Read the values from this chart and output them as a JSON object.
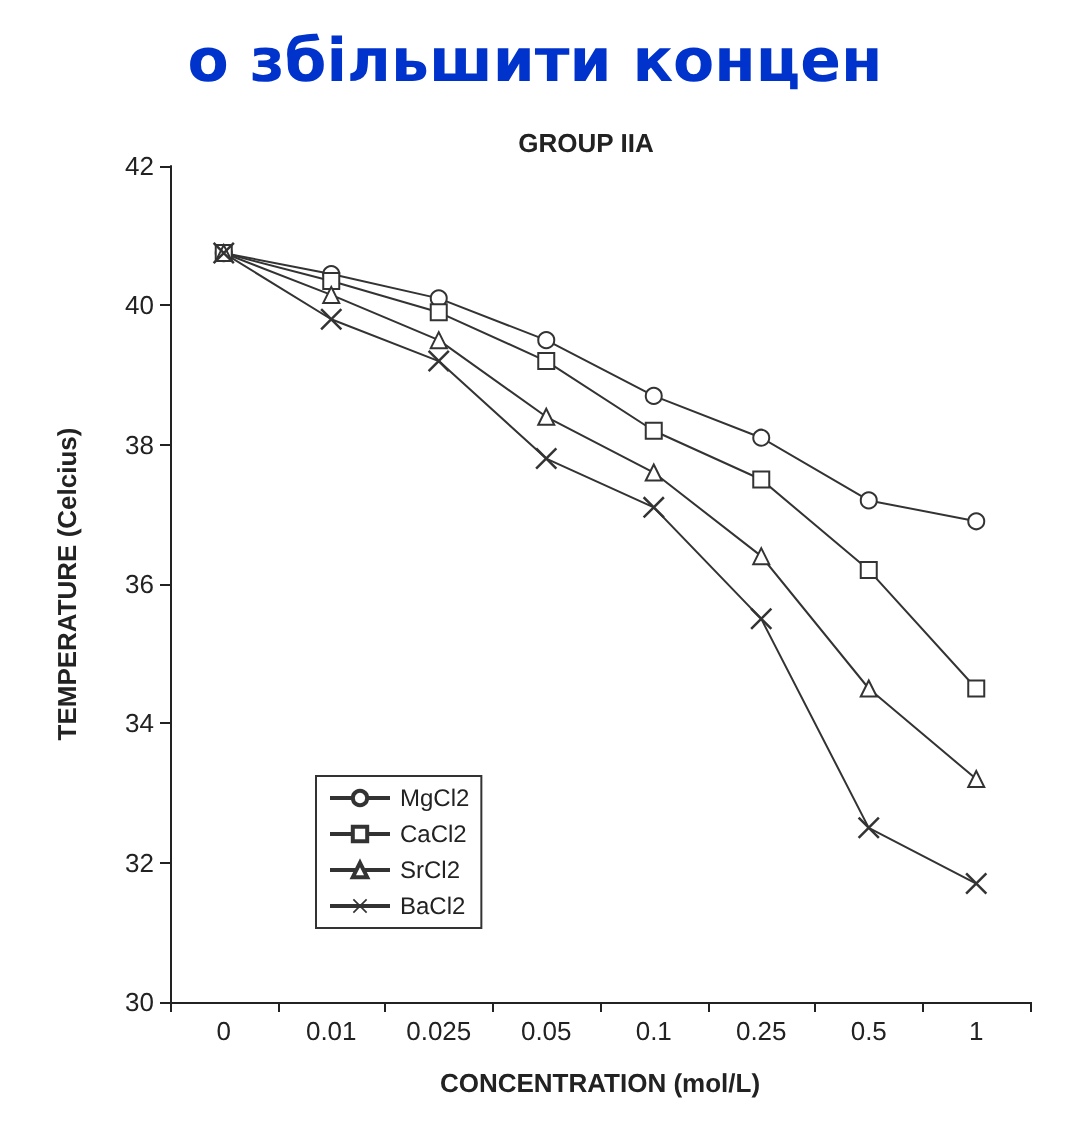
{
  "chart_data": {
    "type": "line",
    "title": "GROUP IIA",
    "xlabel": "CONCENTRATION (mol/L)",
    "ylabel": "TEMPERATURE (Celcius)",
    "annotations": [
      "о збільшити концен"
    ],
    "categories": [
      "0",
      "0.01",
      "0.025",
      "0.05",
      "0.1",
      "0.25",
      "0.5",
      "1"
    ],
    "ylim": [
      30,
      42
    ],
    "yticks": [
      30,
      32,
      34,
      36,
      38,
      40,
      42
    ],
    "grid": false,
    "legend": "bottom left",
    "series": [
      {
        "name": "MgCl2",
        "color": "#333333",
        "marker": "circle",
        "values": [
          40.75,
          40.45,
          40.1,
          39.5,
          38.7,
          38.1,
          37.2,
          36.9
        ]
      },
      {
        "name": "CaCl2",
        "color": "#333333",
        "marker": "square",
        "values": [
          40.75,
          40.35,
          39.9,
          39.2,
          38.2,
          37.5,
          36.2,
          34.5
        ]
      },
      {
        "name": "SrCl2",
        "color": "#333333",
        "marker": "triangle",
        "values": [
          40.75,
          40.15,
          39.5,
          38.4,
          37.6,
          36.4,
          34.5,
          33.2
        ]
      },
      {
        "name": "BaCl2",
        "color": "#333333",
        "marker": "cross",
        "values": [
          40.75,
          39.8,
          39.2,
          37.8,
          37.1,
          35.5,
          32.5,
          31.7
        ]
      }
    ]
  }
}
